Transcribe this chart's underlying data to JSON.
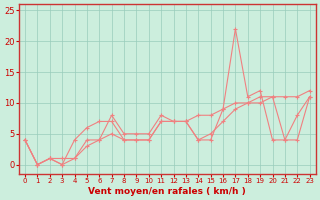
{
  "x": [
    0,
    1,
    2,
    3,
    4,
    5,
    6,
    7,
    8,
    9,
    10,
    11,
    12,
    13,
    14,
    15,
    16,
    17,
    18,
    19,
    20,
    21,
    22,
    23
  ],
  "line_gust": [
    4,
    0,
    1,
    0,
    4,
    6,
    7,
    7,
    4,
    4,
    4,
    7,
    7,
    7,
    4,
    4,
    9,
    22,
    11,
    12,
    4,
    4,
    8,
    11
  ],
  "line_avg": [
    4,
    0,
    1,
    0,
    1,
    3,
    4,
    5,
    4,
    4,
    4,
    7,
    7,
    7,
    4,
    5,
    7,
    9,
    10,
    10,
    11,
    4,
    4,
    11
  ],
  "line_trend": [
    4,
    0,
    1,
    1,
    1,
    4,
    4,
    8,
    5,
    5,
    5,
    8,
    7,
    7,
    8,
    8,
    9,
    10,
    10,
    11,
    11,
    11,
    11,
    12
  ],
  "line_color": "#f08080",
  "bg_color": "#cceedd",
  "grid_color": "#99ccbb",
  "axis_line_color": "#cc3333",
  "xlabel": "Vent moyen/en rafales ( km/h )",
  "xlabel_color": "#cc0000",
  "tick_color": "#cc0000",
  "ylim": [
    -1.5,
    26
  ],
  "xlim": [
    -0.5,
    23.5
  ],
  "yticks": [
    0,
    5,
    10,
    15,
    20,
    25
  ],
  "xticks": [
    0,
    1,
    2,
    3,
    4,
    5,
    6,
    7,
    8,
    9,
    10,
    11,
    12,
    13,
    14,
    15,
    16,
    17,
    18,
    19,
    20,
    21,
    22,
    23
  ]
}
